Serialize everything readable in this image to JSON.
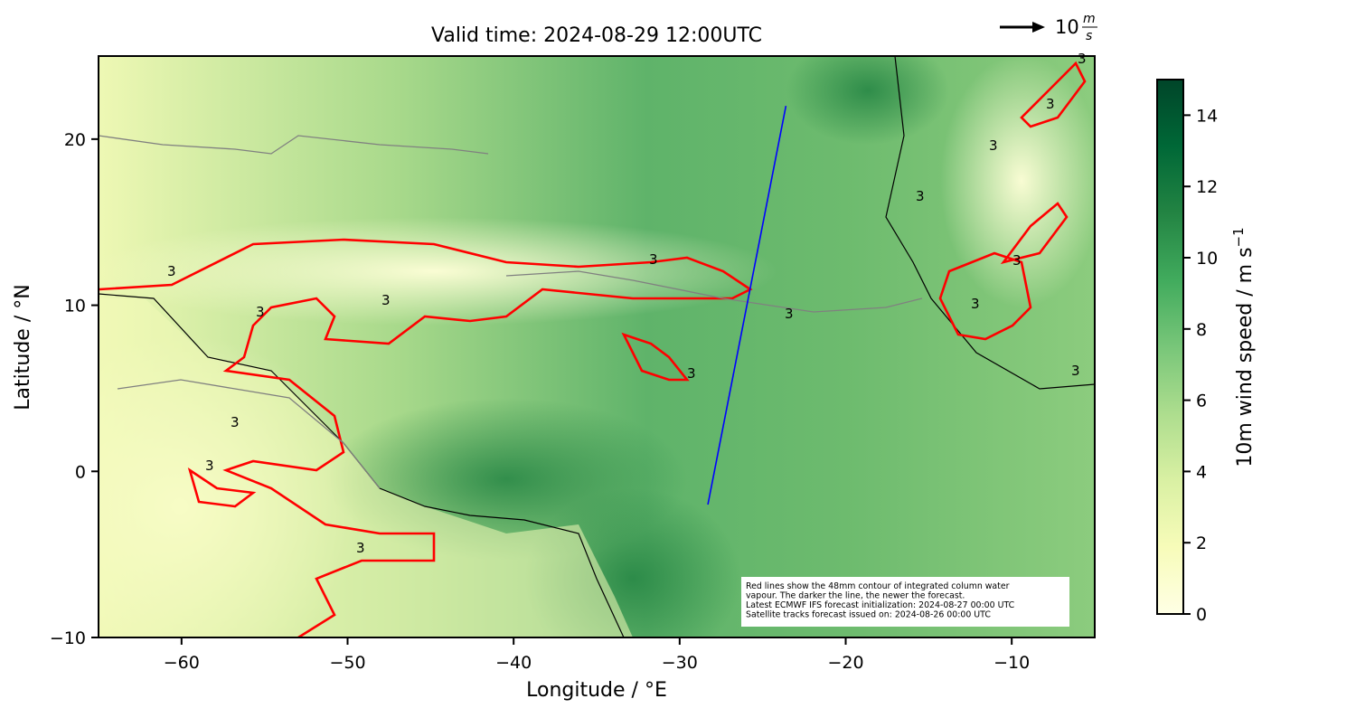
{
  "chart_data": {
    "type": "map",
    "title": "Valid time: 2024-08-29 12:00UTC",
    "xlabel": "Longitude / °E",
    "ylabel": "Latitude / °N",
    "xlim": [
      -65,
      -5
    ],
    "ylim": [
      -10,
      25
    ],
    "xticks": [
      {
        "value": -60,
        "label": "−60"
      },
      {
        "value": -50,
        "label": "−50"
      },
      {
        "value": -40,
        "label": "−40"
      },
      {
        "value": -30,
        "label": "−30"
      },
      {
        "value": -20,
        "label": "−20"
      },
      {
        "value": -10,
        "label": "−10"
      }
    ],
    "yticks": [
      {
        "value": -10,
        "label": "−10"
      },
      0,
      10,
      20
    ],
    "colorbar": {
      "label": "10m wind speed / m s",
      "label_sup": "−1",
      "lim": [
        0,
        15
      ],
      "ticks": [
        0,
        2,
        4,
        6,
        8,
        10,
        12,
        14
      ],
      "colors": [
        "#ffffe5",
        "#f7fcb9",
        "#d9f0a3",
        "#addd8e",
        "#78c679",
        "#41ab5d",
        "#238443",
        "#006837",
        "#004529"
      ]
    },
    "quiver_key": {
      "value": 10,
      "unit_num": "m",
      "unit_den": "s"
    },
    "track": {
      "color": "#0000ff",
      "lon": [
        -28.3,
        -23.6
      ],
      "lat": [
        -2,
        22
      ]
    },
    "contour_label": "3",
    "annotation": [
      "Red lines show the 48mm contour of integrated column water",
      "vapour. The darker the line, the newer the forecast.",
      "Latest ECMWF IFS forecast initialization: 2024-08-27 00:00 UTC",
      "Satellite tracks forecast issued on: 2024-08-26 00:00 UTC"
    ]
  }
}
